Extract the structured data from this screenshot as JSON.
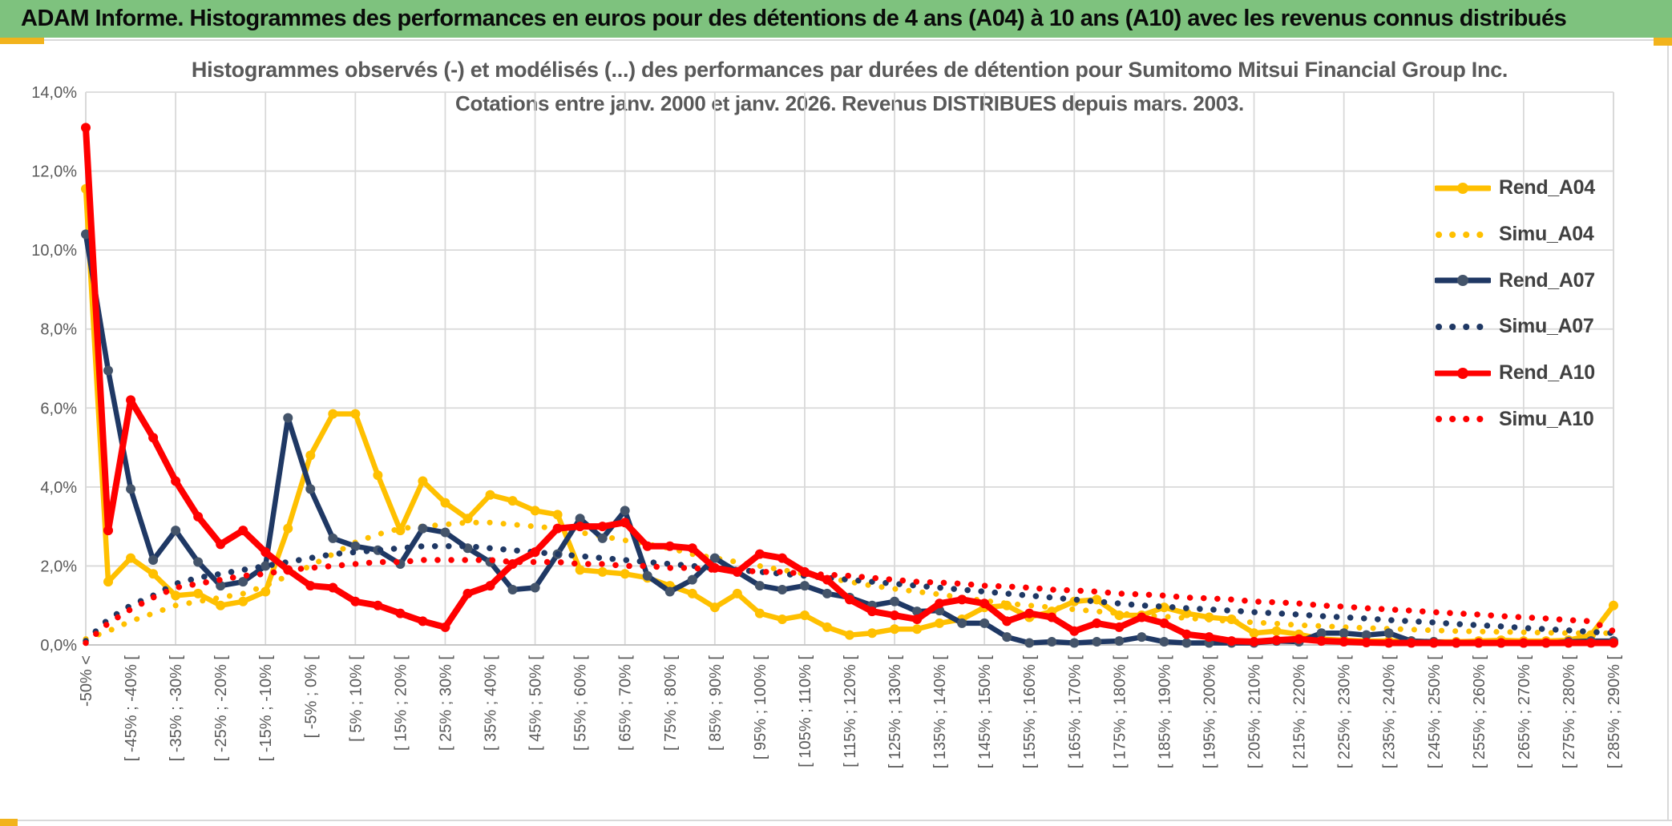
{
  "banner": {
    "title": "ADAM Informe. Histogrammes des performances en euros pour des détentions de 4 ans (A04) à 10 ans (A10) avec les revenus connus distribués"
  },
  "chart": {
    "title_line1": "Histogrammes observés (-) et modélisés (...) des performances par durées de détention pour Sumitomo Mitsui Financial Group Inc.",
    "title_line2": "Cotations entre janv. 2000 et janv. 2026. Revenus DISTRIBUES depuis mars. 2003."
  },
  "colors": {
    "banner_green": "#7EC27E",
    "accent_gold": "#F2B31C",
    "grid": "#D9D9D9",
    "axis_text": "#595959",
    "title_text": "#595959",
    "legend_text": "#404040",
    "series_gold": "#FFC000",
    "series_navy": "#1F3864",
    "series_navy_marker": "#44546A",
    "series_red": "#FF0000"
  },
  "chart_data": {
    "type": "line",
    "title": "Histogrammes observés (-) et modélisés (...) des performances par durées de détention pour Sumitomo Mitsui Financial Group Inc. Cotations entre janv. 2000 et janv. 2026. Revenus DISTRIBUES depuis mars. 2003.",
    "ylabel": "",
    "xlabel": "",
    "ylim": [
      0,
      14
    ],
    "grid": true,
    "legend_position": "right",
    "n_bins": 69,
    "x_tick_every": 2,
    "y_tick_labels": [
      "14,0%",
      "12,0%",
      "10,0%",
      "8,0%",
      "6,0%",
      "4,0%",
      "2,0%",
      "0,0%"
    ],
    "x_tick_labels": [
      "-50% <",
      "[ -45% ; -40% [",
      "[ -35% ; -30% [",
      "[ -25% ; -20% [",
      "[ -15% ; -10% [",
      "[ -5% ; 0% [",
      "[ 5% ; 10% [",
      "[ 15% ; 20% [",
      "[ 25% ; 30% [",
      "[ 35% ; 40% [",
      "[ 45% ; 50% [",
      "[ 55% ; 60% [",
      "[ 65% ; 70% [",
      "[ 75% ; 80% [",
      "[ 85% ; 90% [",
      "[ 95% ; 100% [",
      "[ 105% ; 110% [",
      "[ 115% ; 120% [",
      "[ 125% ; 130% [",
      "[ 135% ; 140% [",
      "[ 145% ; 150% [",
      "[ 155% ; 160% [",
      "[ 165% ; 170% [",
      "[ 175% ; 180% [",
      "[ 185% ; 190% [",
      "[ 195% ; 200% [",
      "[ 205% ; 210% [",
      "[ 215% ; 220% [",
      "[ 225% ; 230% [",
      "[ 235% ; 240% [",
      "[ 245% ; 250% [",
      "[ 255% ; 260% [",
      "[ 265% ; 270% [",
      "[ 275% ; 280% [",
      "[ 285% ; 290% ["
    ],
    "series": [
      {
        "name": "Rend_A04",
        "style": "solid",
        "color": "#FFC000",
        "marker": "#FFC000",
        "width": 6.5,
        "values": [
          11.55,
          1.6,
          2.2,
          1.8,
          1.25,
          1.3,
          1.0,
          1.1,
          1.35,
          2.95,
          4.8,
          5.85,
          5.85,
          4.3,
          2.9,
          4.15,
          3.6,
          3.2,
          3.8,
          3.65,
          3.4,
          3.3,
          1.9,
          1.85,
          1.8,
          1.7,
          1.5,
          1.3,
          0.95,
          1.3,
          0.8,
          0.65,
          0.75,
          0.45,
          0.25,
          0.3,
          0.4,
          0.4,
          0.55,
          0.65,
          0.95,
          1.0,
          0.7,
          0.85,
          1.1,
          1.15,
          0.75,
          0.75,
          0.95,
          0.8,
          0.7,
          0.65,
          0.3,
          0.35,
          0.27,
          0.15,
          0.12,
          0.1,
          0.1,
          0.1,
          0.08,
          0.08,
          0.1,
          0.12,
          0.1,
          0.1,
          0.12,
          0.25,
          1.0
        ]
      },
      {
        "name": "Simu_A04",
        "style": "dotted",
        "color": "#FFC000",
        "width": 7,
        "values": [
          0.15,
          0.35,
          0.6,
          0.8,
          1.0,
          1.1,
          1.2,
          1.3,
          1.5,
          1.75,
          2.0,
          2.3,
          2.6,
          2.8,
          2.95,
          3.0,
          3.05,
          3.1,
          3.1,
          3.05,
          3.0,
          2.95,
          2.85,
          2.75,
          2.65,
          2.55,
          2.45,
          2.3,
          2.2,
          2.1,
          2.0,
          1.9,
          1.8,
          1.7,
          1.6,
          1.5,
          1.42,
          1.35,
          1.28,
          1.2,
          1.12,
          1.05,
          1.0,
          0.95,
          0.9,
          0.85,
          0.8,
          0.75,
          0.72,
          0.68,
          0.64,
          0.6,
          0.57,
          0.54,
          0.5,
          0.48,
          0.45,
          0.43,
          0.41,
          0.39,
          0.37,
          0.35,
          0.34,
          0.33,
          0.32,
          0.31,
          0.3,
          0.3,
          0.3
        ]
      },
      {
        "name": "Rend_A07",
        "style": "solid",
        "color": "#1F3864",
        "marker": "#44546A",
        "width": 6.5,
        "values": [
          10.4,
          6.95,
          3.95,
          2.15,
          2.9,
          2.1,
          1.5,
          1.6,
          2.0,
          5.75,
          3.95,
          2.7,
          2.5,
          2.4,
          2.05,
          2.95,
          2.85,
          2.45,
          2.1,
          1.4,
          1.45,
          2.3,
          3.2,
          2.7,
          3.4,
          1.75,
          1.35,
          1.65,
          2.2,
          1.85,
          1.5,
          1.4,
          1.5,
          1.3,
          1.2,
          1.0,
          1.1,
          0.85,
          0.87,
          0.55,
          0.55,
          0.2,
          0.05,
          0.08,
          0.05,
          0.08,
          0.1,
          0.2,
          0.08,
          0.05,
          0.05,
          0.05,
          0.05,
          0.1,
          0.08,
          0.3,
          0.3,
          0.25,
          0.3,
          0.1,
          0.08,
          0.05,
          0.05,
          0.05,
          0.05,
          0.05,
          0.08,
          0.1,
          0.1
        ]
      },
      {
        "name": "Simu_A07",
        "style": "dotted",
        "color": "#1F3864",
        "width": 7.5,
        "values": [
          0.1,
          0.65,
          1.0,
          1.25,
          1.55,
          1.7,
          1.8,
          1.9,
          2.0,
          2.1,
          2.2,
          2.3,
          2.35,
          2.4,
          2.45,
          2.5,
          2.5,
          2.5,
          2.45,
          2.4,
          2.35,
          2.3,
          2.25,
          2.2,
          2.15,
          2.1,
          2.05,
          2.0,
          1.95,
          1.9,
          1.85,
          1.8,
          1.75,
          1.7,
          1.65,
          1.6,
          1.55,
          1.5,
          1.45,
          1.4,
          1.35,
          1.3,
          1.25,
          1.2,
          1.15,
          1.1,
          1.05,
          1.0,
          0.97,
          0.93,
          0.9,
          0.87,
          0.83,
          0.8,
          0.77,
          0.73,
          0.7,
          0.67,
          0.63,
          0.6,
          0.57,
          0.53,
          0.5,
          0.47,
          0.43,
          0.4,
          0.37,
          0.33,
          0.3
        ]
      },
      {
        "name": "Rend_A10",
        "style": "solid",
        "color": "#FF0000",
        "marker": "#FF0000",
        "width": 8,
        "values": [
          13.1,
          2.9,
          6.2,
          5.25,
          4.15,
          3.25,
          2.55,
          2.9,
          2.35,
          1.9,
          1.5,
          1.45,
          1.1,
          1.0,
          0.8,
          0.6,
          0.45,
          1.3,
          1.5,
          2.05,
          2.35,
          2.95,
          3.0,
          3.0,
          3.1,
          2.5,
          2.5,
          2.45,
          1.95,
          1.85,
          2.3,
          2.2,
          1.85,
          1.65,
          1.15,
          0.85,
          0.75,
          0.65,
          1.05,
          1.15,
          1.05,
          0.6,
          0.8,
          0.7,
          0.35,
          0.55,
          0.45,
          0.7,
          0.55,
          0.27,
          0.2,
          0.1,
          0.08,
          0.12,
          0.15,
          0.1,
          0.08,
          0.06,
          0.05,
          0.05,
          0.05,
          0.05,
          0.05,
          0.05,
          0.05,
          0.05,
          0.05,
          0.05,
          0.05
        ]
      },
      {
        "name": "Simu_A10",
        "style": "dotted",
        "color": "#FF0000",
        "width": 7.5,
        "values": [
          0.05,
          0.55,
          0.9,
          1.2,
          1.45,
          1.55,
          1.65,
          1.75,
          1.8,
          1.9,
          1.95,
          2.0,
          2.05,
          2.1,
          2.1,
          2.15,
          2.15,
          2.15,
          2.15,
          2.1,
          2.1,
          2.1,
          2.05,
          2.05,
          2.0,
          2.0,
          1.95,
          1.95,
          1.9,
          1.9,
          1.85,
          1.85,
          1.8,
          1.78,
          1.75,
          1.7,
          1.65,
          1.6,
          1.58,
          1.55,
          1.5,
          1.48,
          1.45,
          1.4,
          1.38,
          1.35,
          1.3,
          1.28,
          1.25,
          1.2,
          1.18,
          1.15,
          1.1,
          1.08,
          1.05,
          1.0,
          0.97,
          0.93,
          0.9,
          0.87,
          0.83,
          0.8,
          0.77,
          0.73,
          0.7,
          0.67,
          0.63,
          0.6,
          0.35
        ]
      }
    ]
  }
}
